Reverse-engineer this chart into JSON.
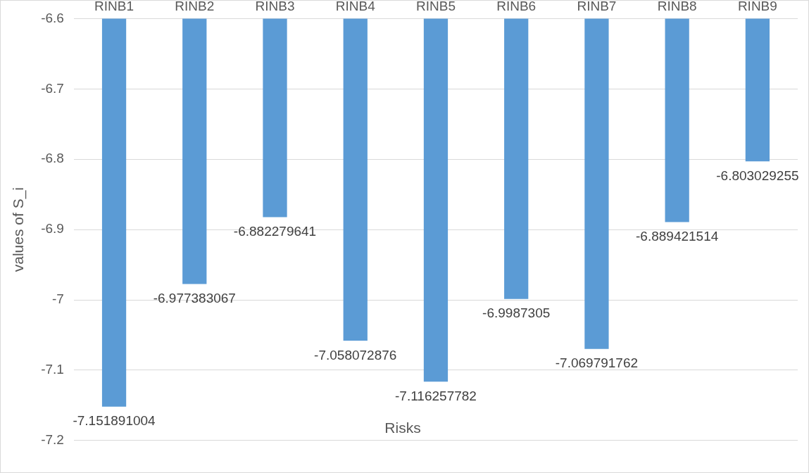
{
  "chart_data": {
    "type": "bar",
    "xlabel": "Risks",
    "ylabel": "values of S_i",
    "categories": [
      "RINB1",
      "RINB2",
      "RINB3",
      "RINB4",
      "RINB5",
      "RINB6",
      "RINB7",
      "RINB8",
      "RINB9"
    ],
    "values": [
      -7.151891004,
      -6.977383067,
      -6.882279641,
      -7.058072876,
      -7.116257782,
      -6.9987305,
      -7.069791762,
      -6.889421514,
      -6.803029255
    ],
    "color": "#5b9bd5",
    "ylim": [
      -7.2,
      -6.6
    ],
    "yticks": [
      -7.2,
      -7.1,
      -7,
      -6.9,
      -6.8,
      -6.7,
      -6.6
    ],
    "grid": "y",
    "legend": false,
    "data_labels": true
  }
}
